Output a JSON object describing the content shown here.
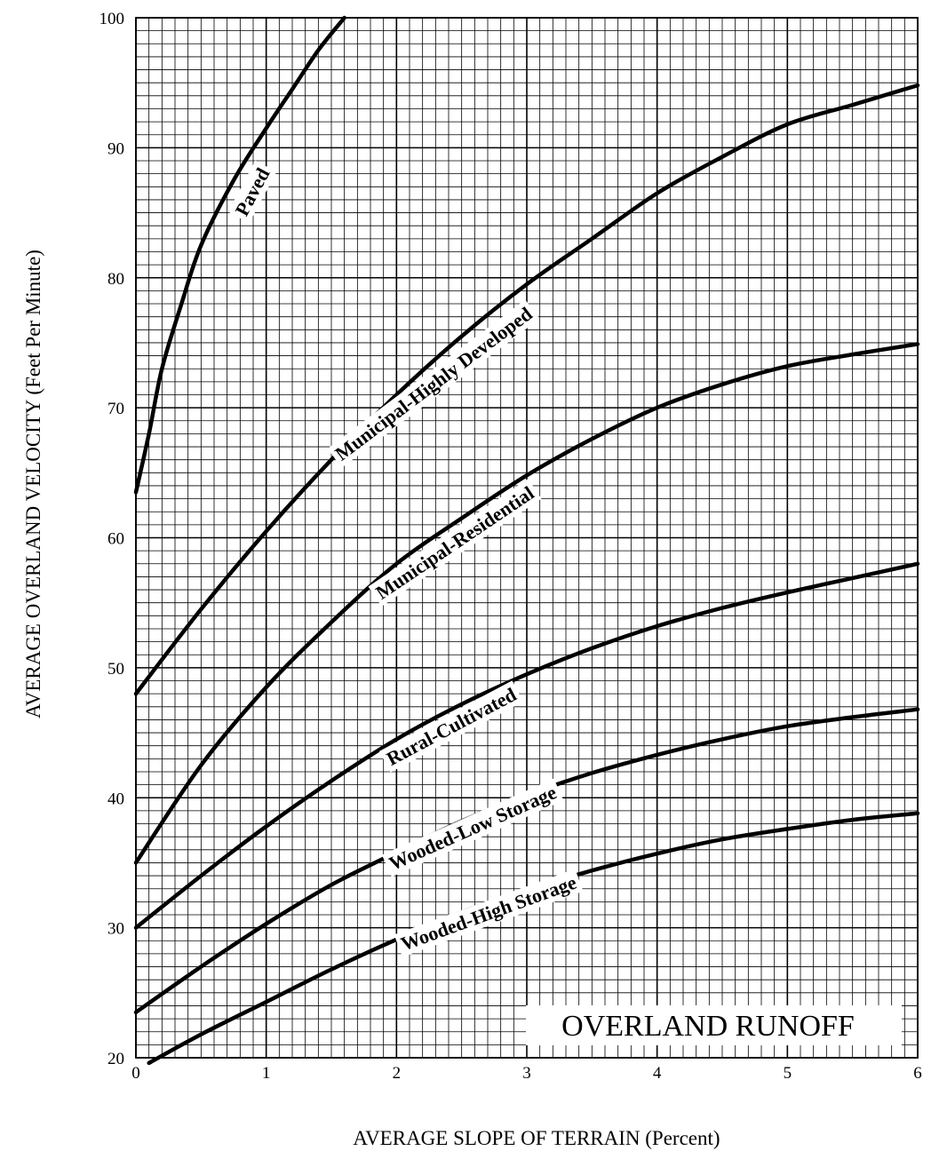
{
  "chart_data": {
    "type": "line",
    "title": "OVERLAND RUNOFF",
    "xlabel": "AVERAGE SLOPE OF TERRAIN (Percent)",
    "ylabel": "AVERAGE OVERLAND VELOCITY (Feet Per Minute)",
    "xlim": [
      0,
      6
    ],
    "ylim": [
      20,
      100
    ],
    "x_ticks": [
      "0",
      "1",
      "2",
      "3",
      "4",
      "5",
      "6"
    ],
    "y_ticks": [
      "20",
      "30",
      "40",
      "50",
      "60",
      "70",
      "80",
      "90",
      "100"
    ],
    "grid": true,
    "minor_grid_step_x": 0.1,
    "minor_grid_step_y": 1,
    "series": [
      {
        "name": "Paved",
        "x": [
          0,
          0.1,
          0.2,
          0.35,
          0.5,
          0.75,
          1.0,
          1.2,
          1.4,
          1.6
        ],
        "y": [
          63.5,
          68,
          73,
          78,
          82.5,
          87.5,
          91.5,
          94.5,
          97.5,
          100
        ]
      },
      {
        "name": "Municipal-Highly Developed",
        "x": [
          0,
          0.5,
          1.0,
          1.5,
          2.0,
          2.5,
          3.0,
          3.5,
          4.0,
          4.5,
          5.0,
          5.5,
          6.0
        ],
        "y": [
          48,
          54.5,
          60.5,
          66,
          71,
          75.5,
          79.5,
          83,
          86.5,
          89.3,
          91.8,
          93.3,
          94.8
        ]
      },
      {
        "name": "Municipal-Residential",
        "x": [
          0,
          0.5,
          1.0,
          1.5,
          2.0,
          2.5,
          3.0,
          3.5,
          4.0,
          4.5,
          5.0,
          5.5,
          6.0
        ],
        "y": [
          35,
          42.5,
          48.5,
          53.5,
          58,
          61.5,
          64.8,
          67.6,
          70,
          71.8,
          73.2,
          74.1,
          74.9
        ]
      },
      {
        "name": "Rural-Cultivated",
        "x": [
          0,
          0.5,
          1.0,
          1.5,
          2.0,
          2.5,
          3.0,
          3.5,
          4.0,
          4.5,
          5.0,
          5.5,
          6.0
        ],
        "y": [
          30,
          34,
          37.8,
          41.3,
          44.5,
          47.2,
          49.5,
          51.5,
          53.2,
          54.6,
          55.8,
          56.9,
          58
        ]
      },
      {
        "name": "Wooded-Low Storage",
        "x": [
          0,
          0.5,
          1.0,
          1.5,
          2.0,
          2.5,
          3.0,
          3.5,
          4.0,
          4.5,
          5.0,
          5.5,
          6.0
        ],
        "y": [
          23.5,
          27,
          30.3,
          33.3,
          35.8,
          38.2,
          40.2,
          41.9,
          43.3,
          44.5,
          45.5,
          46.2,
          46.8
        ]
      },
      {
        "name": "Wooded-High Storage",
        "x": [
          0.1,
          0.5,
          1.0,
          1.5,
          2.0,
          2.5,
          3.0,
          3.5,
          4.0,
          4.5,
          5.0,
          5.5,
          6.0
        ],
        "y": [
          19.6,
          21.8,
          24.3,
          26.8,
          29.1,
          31.2,
          32.9,
          34.4,
          35.7,
          36.8,
          37.6,
          38.3,
          38.8
        ]
      }
    ]
  }
}
